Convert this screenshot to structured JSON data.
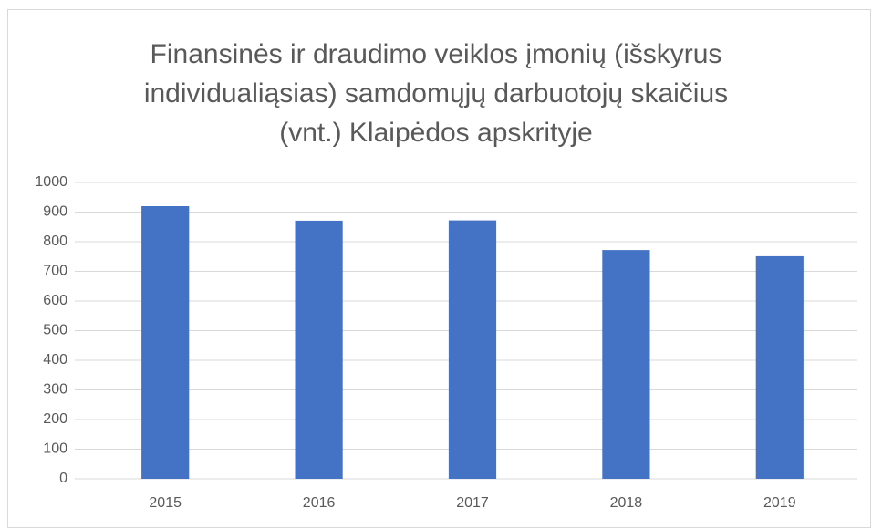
{
  "chart_data": {
    "type": "bar",
    "title": "Finansinės ir draudimo veiklos įmonių (išskyrus individualiąsias) samdomųjų darbuotojų skaičius (vnt.) Klaipėdos apskrityje",
    "categories": [
      "2015",
      "2016",
      "2017",
      "2018",
      "2019"
    ],
    "values": [
      920,
      871,
      872,
      772,
      751
    ],
    "color": "#4472c4",
    "ylim": [
      0,
      1000
    ],
    "yticks": [
      0,
      100,
      200,
      300,
      400,
      500,
      600,
      700,
      800,
      900,
      1000
    ],
    "grid": true
  }
}
